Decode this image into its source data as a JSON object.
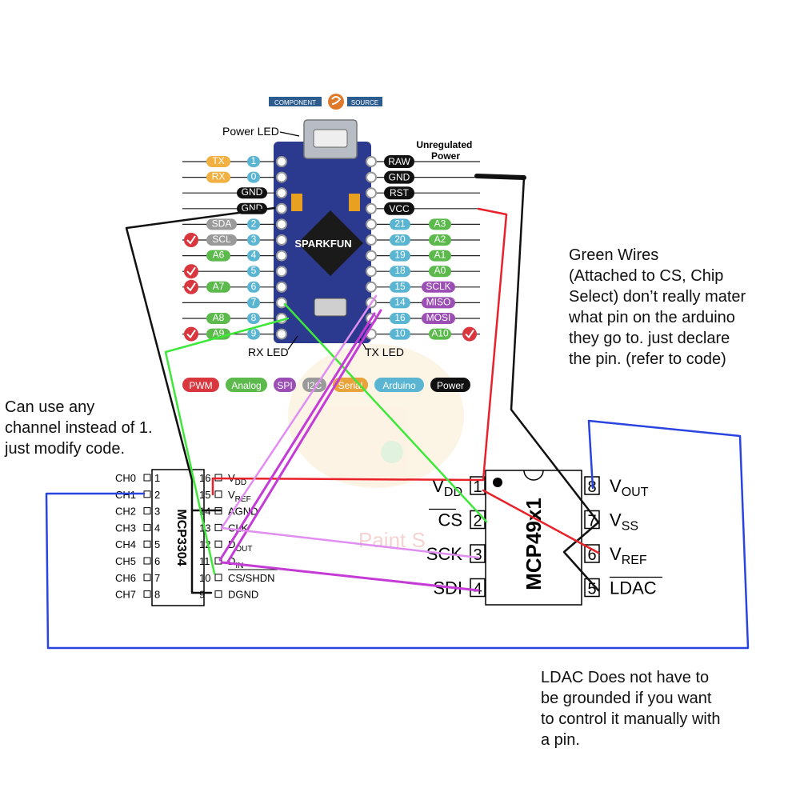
{
  "logo": {
    "left": "COMPONENT",
    "right": "SOURCE"
  },
  "board": {
    "label": "SPARKFUN",
    "power_led_label": "Power LED",
    "rx_led_label": "RX LED",
    "tx_led_label": "TX LED",
    "unregulated_power_label": "Unregulated Power",
    "left_pins": [
      {
        "num": "1",
        "tags": [
          "TX"
        ]
      },
      {
        "num": "0",
        "tags": [
          "RX"
        ]
      },
      {
        "num": "",
        "tags": [
          "GND"
        ]
      },
      {
        "num": "",
        "tags": [
          "GND"
        ]
      },
      {
        "num": "2",
        "tags": [
          "SDA"
        ]
      },
      {
        "num": "3",
        "tags": [
          "SCL"
        ],
        "check": true
      },
      {
        "num": "4",
        "tags": [
          "A6"
        ]
      },
      {
        "num": "5",
        "tags": [],
        "check": true
      },
      {
        "num": "6",
        "tags": [
          "A7"
        ],
        "check": true
      },
      {
        "num": "7",
        "tags": []
      },
      {
        "num": "8",
        "tags": [
          "A8"
        ]
      },
      {
        "num": "9",
        "tags": [
          "A9"
        ],
        "check": true
      }
    ],
    "right_pins": [
      {
        "name": "RAW",
        "num": "",
        "tag": ""
      },
      {
        "name": "GND",
        "num": "",
        "tag": ""
      },
      {
        "name": "RST",
        "num": "",
        "tag": ""
      },
      {
        "name": "VCC",
        "num": "",
        "tag": ""
      },
      {
        "name": "",
        "num": "21",
        "tag": "A3"
      },
      {
        "name": "",
        "num": "20",
        "tag": "A2"
      },
      {
        "name": "",
        "num": "19",
        "tag": "A1"
      },
      {
        "name": "",
        "num": "18",
        "tag": "A0"
      },
      {
        "name": "",
        "num": "15",
        "tag": "SCLK"
      },
      {
        "name": "",
        "num": "14",
        "tag": "MISO"
      },
      {
        "name": "",
        "num": "16",
        "tag": "MOSI"
      },
      {
        "name": "",
        "num": "10",
        "tag": "A10",
        "check": true
      }
    ],
    "legend": [
      "PWM",
      "Analog",
      "SPI",
      "I2C",
      "Serial",
      "Arduino",
      "Power"
    ]
  },
  "mcp3304": {
    "name": "MCP3304",
    "left_pins": [
      {
        "label": "CH0",
        "num": "1"
      },
      {
        "label": "CH1",
        "num": "2"
      },
      {
        "label": "CH2",
        "num": "3"
      },
      {
        "label": "CH3",
        "num": "4"
      },
      {
        "label": "CH4",
        "num": "5"
      },
      {
        "label": "CH5",
        "num": "6"
      },
      {
        "label": "CH6",
        "num": "7"
      },
      {
        "label": "CH7",
        "num": "8"
      }
    ],
    "right_pins": [
      {
        "num": "16",
        "label": "V",
        "sub": "DD"
      },
      {
        "num": "15",
        "label": "V",
        "sub": "REF"
      },
      {
        "num": "14",
        "label": "AGND",
        "sub": ""
      },
      {
        "num": "13",
        "label": "CLK",
        "sub": ""
      },
      {
        "num": "12",
        "label": "D",
        "sub": "OUT"
      },
      {
        "num": "11",
        "label": "D",
        "sub": "IN"
      },
      {
        "num": "10",
        "label": "CS/SHDN",
        "sub": ""
      },
      {
        "num": "9",
        "label": "DGND",
        "sub": ""
      }
    ]
  },
  "mcp49x1": {
    "name": "MCP49x1",
    "left_pins": [
      {
        "num": "1",
        "label": "V",
        "sub": "DD"
      },
      {
        "num": "2",
        "label": "CS",
        "sub": ""
      },
      {
        "num": "3",
        "label": "SCK",
        "sub": ""
      },
      {
        "num": "4",
        "label": "SDI",
        "sub": ""
      }
    ],
    "right_pins": [
      {
        "num": "8",
        "label": "V",
        "sub": "OUT"
      },
      {
        "num": "7",
        "label": "V",
        "sub": "SS"
      },
      {
        "num": "6",
        "label": "V",
        "sub": "REF"
      },
      {
        "num": "5",
        "label": "LDAC",
        "sub": ""
      }
    ]
  },
  "notes": {
    "green_wires": "Green Wires\n(Attached to CS, Chip\nSelect) don’t really mater\nwhat pin on the arduino\nthey go to. just declare\nthe pin. (refer to code)",
    "channel": "Can use any\nchannel instead of 1.\njust modify code.",
    "ldac": "LDAC Does not have to\nbe grounded if you want\nto control it manually with\na pin."
  },
  "watermark": "Paint S",
  "colors": {
    "tx_rx": "#f2b040",
    "gnd": "#111111",
    "analog": "#5cba4c",
    "arduino": "#5ab5d2",
    "spi": "#9b4fb5",
    "pwm": "#d9363e",
    "serial": "#e8a33b",
    "i2c": "#9a9a9a",
    "wire_red": "#e8212a",
    "wire_green": "#3ee83a",
    "wire_blue": "#2a44e0",
    "wire_violet": "#c43bd6",
    "wire_pink": "#e08ef0",
    "wire_black": "#111111"
  }
}
